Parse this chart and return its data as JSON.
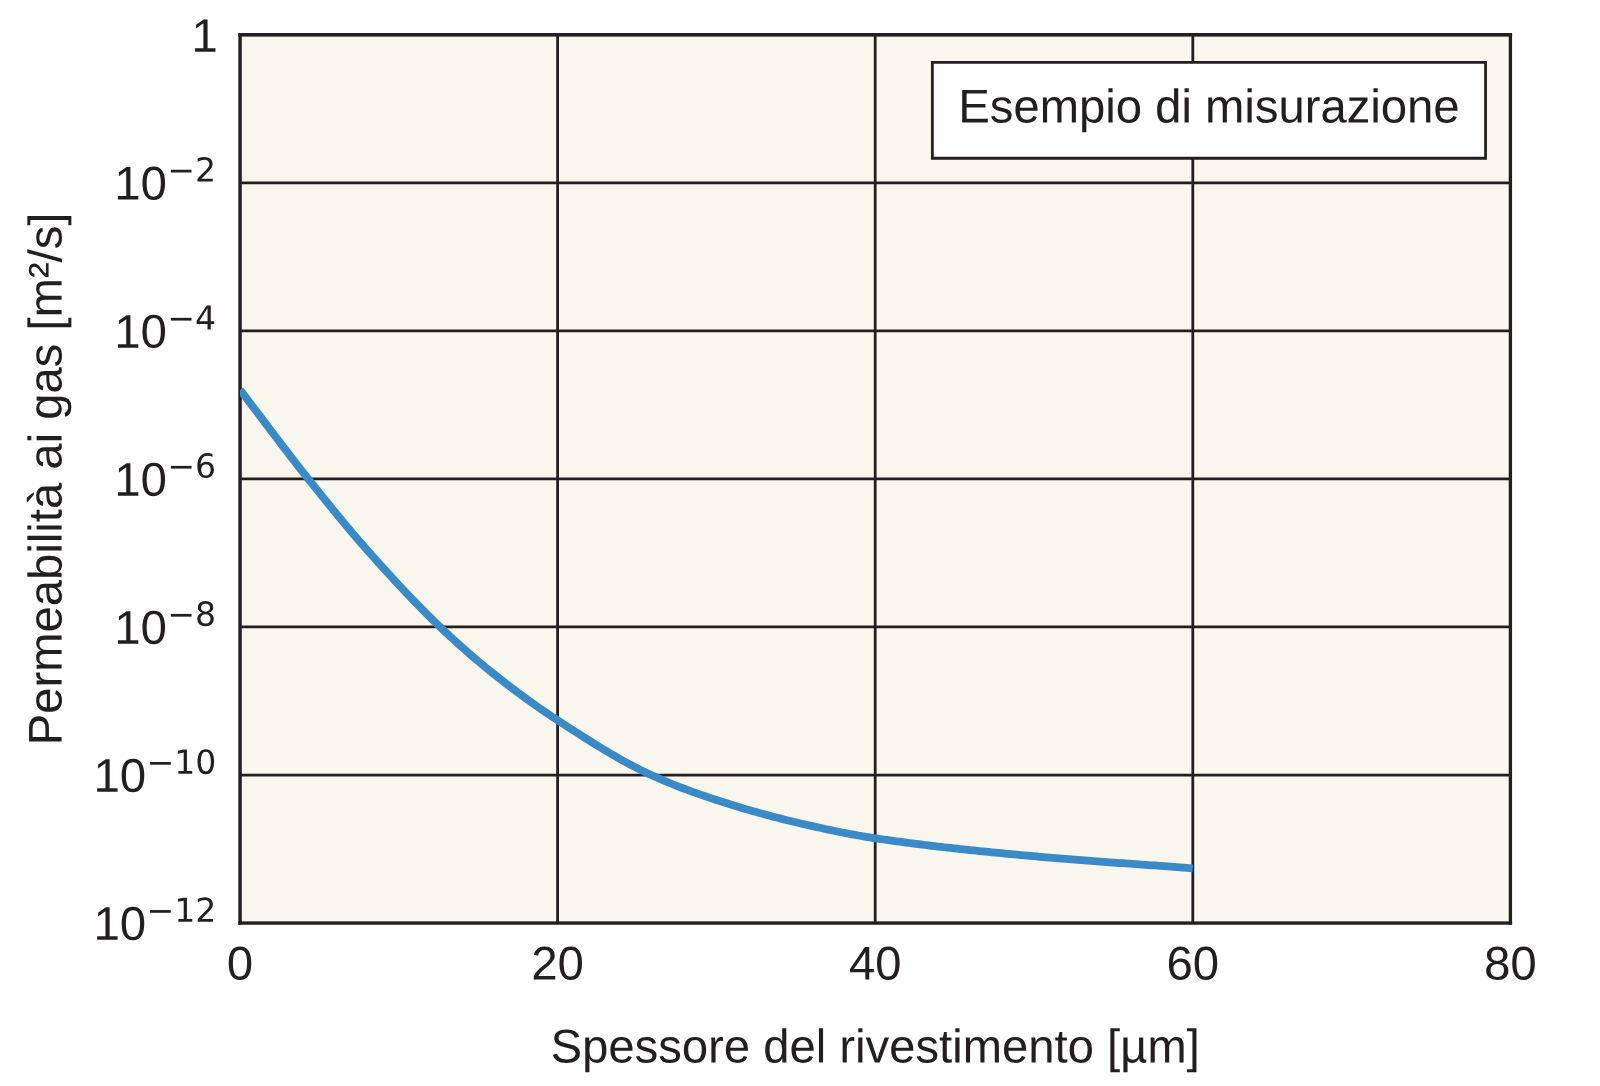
{
  "chart_data": {
    "type": "line",
    "xlabel": "Spessore del rivestimento [µm]",
    "ylabel": "Permeabilità ai gas [m²/s]",
    "annotations": [
      "Esempio di misurazione"
    ],
    "series": [
      {
        "color": "#3a8ac8",
        "x": [
          0,
          4.3,
          8,
          12.6,
          16,
          20,
          25.9,
          30,
          35,
          40,
          50,
          60
        ],
        "values": [
          1.6e-05,
          1e-06,
          1.1e-07,
          1e-08,
          2.3e-09,
          5.5e-10,
          1e-10,
          4.6e-11,
          2.3e-11,
          1.4e-11,
          8e-12,
          5.5e-12
        ]
      }
    ],
    "log": true,
    "xlim": [
      0,
      80
    ],
    "xticks": [
      0,
      20,
      40,
      60,
      80
    ],
    "ylim": [
      1e-12,
      1
    ],
    "yticks": [
      {
        "value": 1e-12,
        "label": "10$^{−12}$"
      },
      {
        "value": 1e-10,
        "label": "10$^{−10}$"
      },
      {
        "value": 1e-08,
        "label": "10$^{−8}$"
      },
      {
        "value": 1e-06,
        "label": "10$^{−6}$"
      },
      {
        "value": 0.0001,
        "label": "10$^{−4}$"
      },
      {
        "value": 0.01,
        "label": "10$^{−2}$"
      },
      {
        "value": 1,
        "label": "1"
      }
    ],
    "grid": true,
    "marker": "none",
    "line_style": "solid"
  }
}
